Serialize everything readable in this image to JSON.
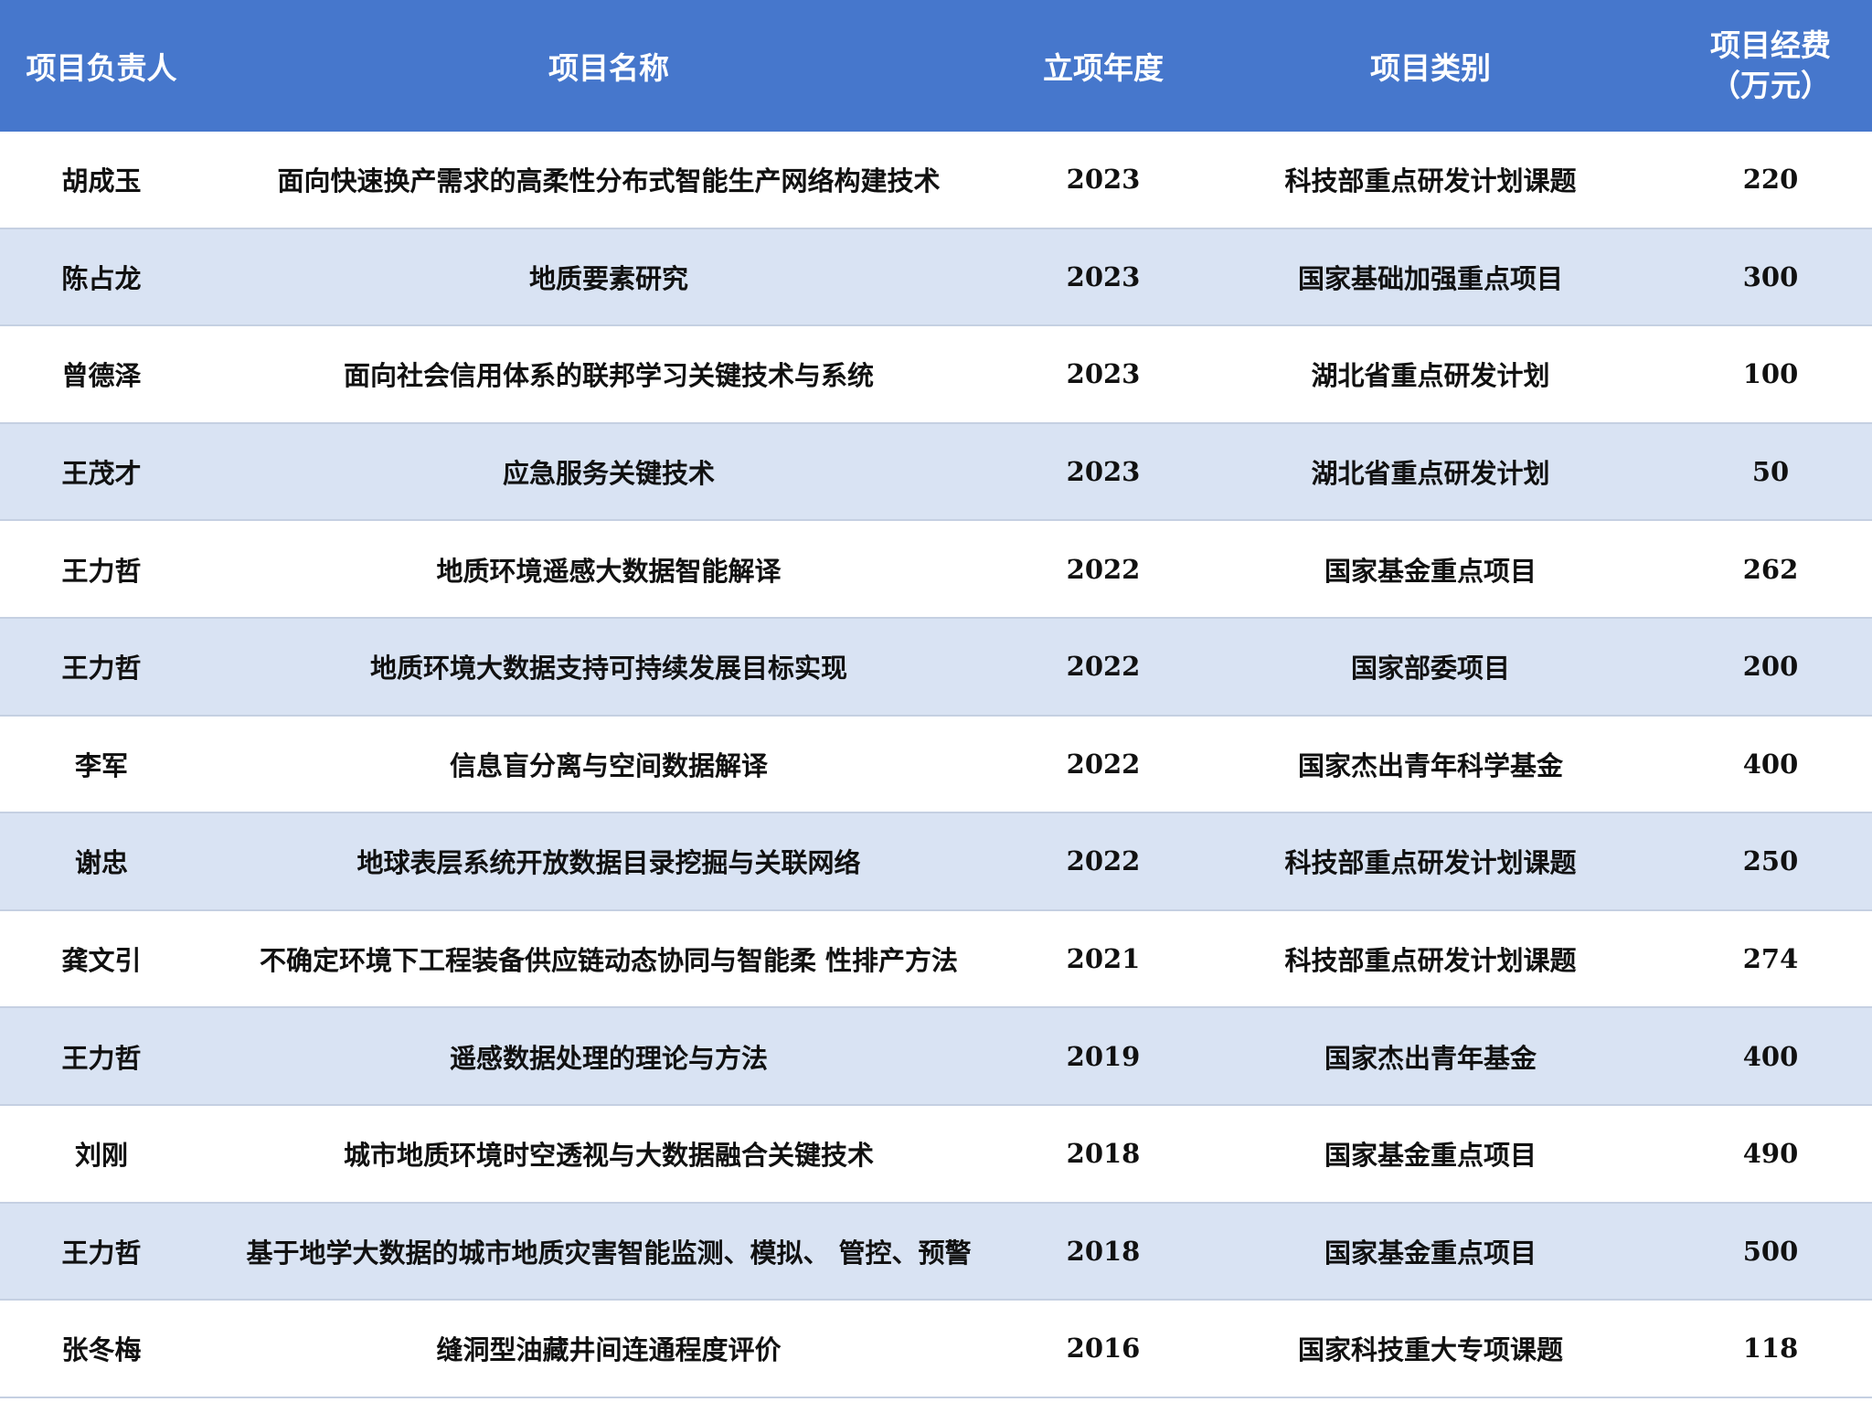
{
  "header": {
    "leader": "项目负责人",
    "name": "项目名称",
    "year": "立项年度",
    "category": "项目类别",
    "funding_line1": "项目经费",
    "funding_line2": "（万元）"
  },
  "rows": [
    {
      "leader": "胡成玉",
      "name": "面向快速换产需求的高柔性分布式智能生产网络构建技术",
      "year": "2023",
      "category": "科技部重点研发计划课题",
      "funding": "220"
    },
    {
      "leader": "陈占龙",
      "name": "地质要素研究",
      "year": "2023",
      "category": "国家基础加强重点项目",
      "funding": "300"
    },
    {
      "leader": "曾德泽",
      "name": "面向社会信用体系的联邦学习关键技术与系统",
      "year": "2023",
      "category": "湖北省重点研发计划",
      "funding": "100"
    },
    {
      "leader": "王茂才",
      "name": "应急服务关键技术",
      "year": "2023",
      "category": "湖北省重点研发计划",
      "funding": "50"
    },
    {
      "leader": "王力哲",
      "name": "地质环境遥感大数据智能解译",
      "year": "2022",
      "category": "国家基金重点项目",
      "funding": "262"
    },
    {
      "leader": "王力哲",
      "name": "地质环境大数据支持可持续发展目标实现",
      "year": "2022",
      "category": "国家部委项目",
      "funding": "200"
    },
    {
      "leader": "李军",
      "name": "信息盲分离与空间数据解译",
      "year": "2022",
      "category": "国家杰出青年科学基金",
      "funding": "400"
    },
    {
      "leader": "谢忠",
      "name": "地球表层系统开放数据目录挖掘与关联网络",
      "year": "2022",
      "category": "科技部重点研发计划课题",
      "funding": "250"
    },
    {
      "leader": "龚文引",
      "name": "不确定环境下工程装备供应链动态协同与智能柔 性排产方法",
      "year": "2021",
      "category": "科技部重点研发计划课题",
      "funding": "274"
    },
    {
      "leader": "王力哲",
      "name": "遥感数据处理的理论与方法",
      "year": "2019",
      "category": "国家杰出青年基金",
      "funding": "400"
    },
    {
      "leader": "刘刚",
      "name": "城市地质环境时空透视与大数据融合关键技术",
      "year": "2018",
      "category": "国家基金重点项目",
      "funding": "490"
    },
    {
      "leader": "王力哲",
      "name": "基于地学大数据的城市地质灾害智能监测、模拟、 管控、预警",
      "year": "2018",
      "category": "国家基金重点项目",
      "funding": "500"
    },
    {
      "leader": "张冬梅",
      "name": "缝洞型油藏井间连通程度评价",
      "year": "2016",
      "category": "国家科技重大专项课题",
      "funding": "118"
    }
  ],
  "colors": {
    "header_bg": "#4677cc",
    "band_bg": "#d9e3f3",
    "header_text": "#ffffff"
  }
}
